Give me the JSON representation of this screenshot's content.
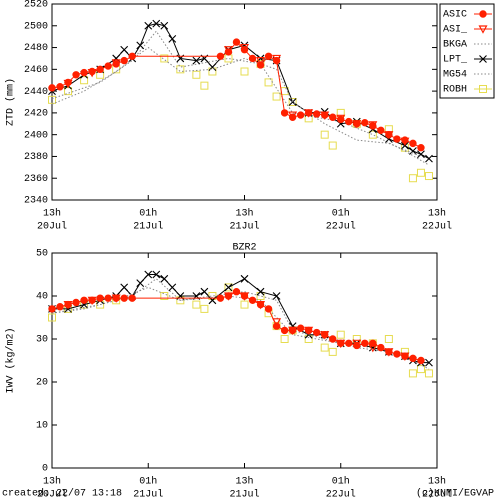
{
  "chart_data": [
    {
      "type": "line",
      "ylabel": "ZTD (mm)",
      "legend": "outside-right",
      "xlim": [
        0,
        48
      ],
      "ylim": [
        2340,
        2520
      ],
      "yticks": [
        2340,
        2360,
        2380,
        2400,
        2420,
        2440,
        2460,
        2480,
        2500,
        2520
      ],
      "xticks": [
        {
          "value": 0,
          "label": "13h",
          "date": "20Jul"
        },
        {
          "value": 12,
          "label": "01h",
          "date": "21Jul"
        },
        {
          "value": 24,
          "label": "13h",
          "date": "21Jul"
        },
        {
          "value": 36,
          "label": "01h",
          "date": "22Jul"
        },
        {
          "value": 48,
          "label": "13h",
          "date": "22Jul"
        }
      ],
      "series": [
        {
          "name": "ASIC",
          "color": "#ff2000",
          "marker": "circle",
          "line": "solid",
          "x": [
            0,
            1,
            2,
            3,
            4,
            5,
            6,
            7,
            8,
            9,
            10,
            21,
            22,
            23,
            24,
            25,
            26,
            27,
            28,
            29,
            30,
            31,
            32,
            33,
            34,
            35,
            36,
            37,
            38,
            39,
            40,
            41,
            42,
            43,
            44,
            45,
            46
          ],
          "values": [
            2443,
            2444,
            2448,
            2455,
            2457,
            2458,
            2460,
            2463,
            2465,
            2468,
            2472,
            2472,
            2476,
            2485,
            2478,
            2470,
            2464,
            2472,
            2468,
            2420,
            2416,
            2418,
            2420,
            2419,
            2418,
            2416,
            2414,
            2412,
            2410,
            2411,
            2408,
            2404,
            2400,
            2396,
            2395,
            2392,
            2388
          ]
        },
        {
          "name": "ASI_",
          "color": "#ff2000",
          "marker": "triangle",
          "line": "none",
          "x": [
            2,
            5,
            8,
            22,
            24,
            26,
            28,
            30,
            32,
            34,
            36,
            38,
            40,
            42,
            44
          ],
          "values": [
            2447,
            2457,
            2466,
            2478,
            2480,
            2468,
            2470,
            2418,
            2420,
            2418,
            2415,
            2410,
            2409,
            2400,
            2394
          ]
        },
        {
          "name": "BKGA",
          "color": "#888888",
          "marker": "none",
          "line": "dotted",
          "x": [
            0,
            4,
            8,
            12,
            16,
            20,
            24,
            28,
            30,
            34,
            38,
            42,
            46
          ],
          "values": [
            2428,
            2440,
            2458,
            2480,
            2458,
            2460,
            2470,
            2460,
            2430,
            2410,
            2395,
            2392,
            2380
          ]
        },
        {
          "name": "LPT_",
          "color": "#000000",
          "marker": "x",
          "line": "solid",
          "x": [
            0,
            2,
            4,
            6,
            8,
            9,
            10,
            11,
            12,
            13,
            14,
            15,
            16,
            18,
            19,
            20,
            22,
            24,
            26,
            28,
            30,
            32,
            34,
            36,
            38,
            40,
            42,
            44,
            45,
            46,
            47
          ],
          "values": [
            2440,
            2445,
            2455,
            2460,
            2470,
            2478,
            2470,
            2482,
            2500,
            2502,
            2500,
            2488,
            2470,
            2468,
            2470,
            2462,
            2478,
            2482,
            2470,
            2468,
            2430,
            2420,
            2421,
            2410,
            2412,
            2405,
            2396,
            2390,
            2385,
            2382,
            2378
          ]
        },
        {
          "name": "MG54",
          "color": "#888888",
          "marker": "none",
          "line": "dotted",
          "x": [
            0,
            6,
            10,
            13,
            16,
            22,
            26,
            30,
            36,
            40,
            44,
            47
          ],
          "values": [
            2433,
            2448,
            2468,
            2495,
            2462,
            2470,
            2465,
            2420,
            2412,
            2400,
            2385,
            2372
          ]
        },
        {
          "name": "ROBH",
          "color": "#e6dc50",
          "marker": "square",
          "line": "none",
          "x": [
            0,
            2,
            4,
            6,
            8,
            14,
            16,
            18,
            19,
            20,
            22,
            24,
            26,
            27,
            28,
            29,
            30,
            32,
            34,
            35,
            36,
            38,
            40,
            42,
            44,
            45,
            46,
            47
          ],
          "values": [
            2432,
            2440,
            2450,
            2455,
            2460,
            2470,
            2460,
            2455,
            2445,
            2458,
            2470,
            2458,
            2465,
            2448,
            2435,
            2440,
            2430,
            2415,
            2400,
            2390,
            2420,
            2410,
            2400,
            2405,
            2388,
            2360,
            2365,
            2362
          ]
        }
      ]
    },
    {
      "type": "line",
      "title": "BZR2",
      "ylabel": "IWV (kg/m2)",
      "xlim": [
        0,
        48
      ],
      "ylim": [
        0,
        50
      ],
      "yticks": [
        0,
        10,
        20,
        30,
        40,
        50
      ],
      "xticks": [
        {
          "value": 0,
          "label": "13h",
          "date": "20Jul"
        },
        {
          "value": 12,
          "label": "01h",
          "date": "21Jul"
        },
        {
          "value": 24,
          "label": "13h",
          "date": "21Jul"
        },
        {
          "value": 36,
          "label": "01h",
          "date": "22Jul"
        },
        {
          "value": 48,
          "label": "13h",
          "date": "22Jul"
        }
      ],
      "series": [
        {
          "color": "#ff2000",
          "marker": "circle",
          "line": "solid",
          "x": [
            0,
            1,
            2,
            3,
            4,
            5,
            6,
            7,
            8,
            9,
            10,
            21,
            22,
            23,
            24,
            25,
            26,
            27,
            28,
            29,
            30,
            31,
            32,
            33,
            34,
            35,
            36,
            37,
            38,
            39,
            40,
            41,
            42,
            43,
            44,
            45,
            46
          ],
          "values": [
            37,
            37.5,
            38,
            38.5,
            39,
            39,
            39.5,
            39.5,
            39.5,
            39.5,
            39.5,
            39.5,
            40,
            41,
            40,
            39,
            38,
            37,
            33,
            32,
            32,
            32.5,
            32,
            31.5,
            31,
            30,
            29,
            29,
            28.5,
            29,
            29,
            28,
            27,
            26.5,
            26,
            25.5,
            25
          ]
        },
        {
          "color": "#ff2000",
          "marker": "triangle",
          "line": "none",
          "x": [
            2,
            5,
            8,
            22,
            24,
            26,
            28,
            30,
            32,
            34,
            36,
            38,
            40,
            42,
            44
          ],
          "values": [
            38,
            39,
            39.5,
            40,
            40,
            38,
            34,
            32,
            32,
            31,
            29,
            29,
            28,
            27,
            26
          ]
        },
        {
          "color": "#888888",
          "marker": "none",
          "line": "dotted",
          "x": [
            0,
            4,
            8,
            12,
            16,
            20,
            24,
            28,
            30,
            34,
            38,
            42,
            46
          ],
          "values": [
            36,
            37,
            39,
            42,
            39,
            40,
            41,
            39,
            32,
            30,
            28,
            27,
            25
          ]
        },
        {
          "color": "#000000",
          "marker": "x",
          "line": "solid",
          "x": [
            0,
            2,
            4,
            6,
            8,
            9,
            10,
            11,
            12,
            13,
            14,
            15,
            16,
            18,
            19,
            20,
            22,
            24,
            26,
            28,
            30,
            32,
            34,
            36,
            38,
            40,
            42,
            44,
            45,
            46,
            47
          ],
          "values": [
            37,
            37,
            38,
            39,
            40,
            42,
            40,
            43,
            45,
            45,
            44,
            42,
            40,
            40,
            41,
            39,
            42,
            44,
            41,
            40,
            33,
            31,
            31,
            29,
            29,
            28,
            27,
            26,
            25,
            24.5,
            24.5
          ]
        },
        {
          "color": "#888888",
          "marker": "none",
          "line": "dotted",
          "x": [
            0,
            6,
            10,
            13,
            16,
            22,
            26,
            30,
            36,
            40,
            44,
            47
          ],
          "values": [
            36,
            38,
            40,
            44,
            39,
            40,
            39,
            31,
            29,
            28,
            26,
            23
          ]
        },
        {
          "color": "#e6dc50",
          "marker": "square",
          "line": "none",
          "x": [
            0,
            2,
            4,
            6,
            8,
            14,
            16,
            18,
            19,
            20,
            22,
            24,
            26,
            27,
            28,
            29,
            30,
            32,
            34,
            35,
            36,
            38,
            40,
            42,
            44,
            45,
            46,
            47
          ],
          "values": [
            35,
            37,
            38,
            38,
            39,
            40,
            39,
            38,
            37,
            40,
            42,
            38,
            40,
            36,
            33,
            30,
            32,
            30,
            28,
            27,
            31,
            30,
            29,
            30,
            27,
            22,
            23,
            22
          ]
        }
      ]
    }
  ],
  "footer": {
    "left": "created: 22/07 13:18",
    "right": "(c)KNMI/EGVAP"
  }
}
